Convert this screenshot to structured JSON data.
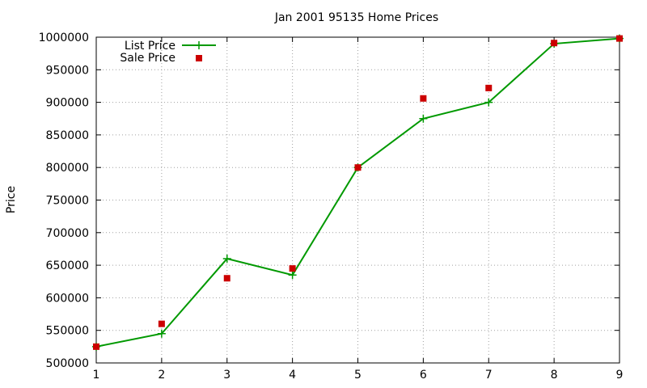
{
  "chart_data": {
    "type": "line",
    "title": "Jan 2001 95135 Home Prices",
    "xlabel": "",
    "ylabel": "Price",
    "xlim": [
      1,
      9
    ],
    "ylim": [
      500000,
      1000000
    ],
    "x_ticks": [
      "1",
      "2",
      "3",
      "4",
      "5",
      "6",
      "7",
      "8",
      "9"
    ],
    "y_ticks": [
      "500000",
      "550000",
      "600000",
      "650000",
      "700000",
      "750000",
      "800000",
      "850000",
      "900000",
      "950000",
      "1000000"
    ],
    "grid": true,
    "legend_position": "top-left",
    "x": [
      1,
      2,
      3,
      4,
      5,
      6,
      7,
      8,
      9
    ],
    "series": [
      {
        "name": "List Price",
        "style": "line-with-plus-markers",
        "color": "#009900",
        "values": [
          525000,
          545000,
          660000,
          635000,
          800000,
          875000,
          900000,
          990000,
          998000
        ]
      },
      {
        "name": "Sale Price",
        "style": "square-markers",
        "color": "#cc0000",
        "values": [
          525000,
          560000,
          630000,
          645000,
          800000,
          906000,
          922000,
          991000,
          998000
        ]
      }
    ]
  }
}
